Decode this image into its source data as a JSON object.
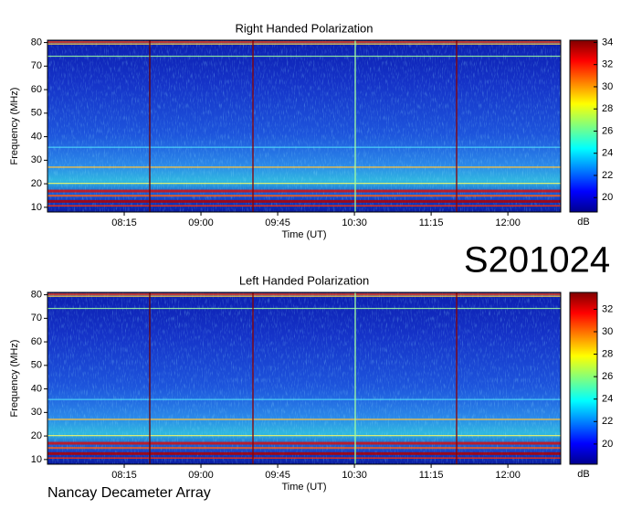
{
  "chart_data": [
    {
      "type": "heatmap",
      "title": "Right Handed Polarization",
      "xlabel": "Time (UT)",
      "ylabel": "Frequency (MHz)",
      "xlim": [
        450,
        751
      ],
      "ylim": [
        8,
        81
      ],
      "xticks": [
        {
          "value": 495,
          "label": "08:15"
        },
        {
          "value": 540,
          "label": "09:00"
        },
        {
          "value": 585,
          "label": "09:45"
        },
        {
          "value": 630,
          "label": "10:30"
        },
        {
          "value": 675,
          "label": "11:15"
        },
        {
          "value": 720,
          "label": "12:00"
        }
      ],
      "yticks": [
        10,
        20,
        30,
        40,
        50,
        60,
        70,
        80
      ],
      "colorbar_label": "dB",
      "clim": [
        18.7,
        34.2
      ],
      "cticks": [
        20,
        22,
        24,
        26,
        28,
        30,
        32,
        34
      ]
    },
    {
      "type": "heatmap",
      "title": "Left Handed Polarization",
      "xlabel": "Time (UT)",
      "ylabel": "Frequency (MHz)",
      "xlim": [
        450,
        751
      ],
      "ylim": [
        8,
        81
      ],
      "xticks": [
        {
          "value": 495,
          "label": "08:15"
        },
        {
          "value": 540,
          "label": "09:00"
        },
        {
          "value": 585,
          "label": "09:45"
        },
        {
          "value": 630,
          "label": "10:30"
        },
        {
          "value": 675,
          "label": "11:15"
        },
        {
          "value": 720,
          "label": "12:00"
        }
      ],
      "yticks": [
        10,
        20,
        30,
        40,
        50,
        60,
        70,
        80
      ],
      "colorbar_label": "dB",
      "clim": [
        18.2,
        33.5
      ],
      "cticks": [
        20,
        22,
        24,
        26,
        28,
        30,
        32
      ]
    }
  ],
  "observation_id": "S201024",
  "instrument": "Nancay Decameter Array"
}
